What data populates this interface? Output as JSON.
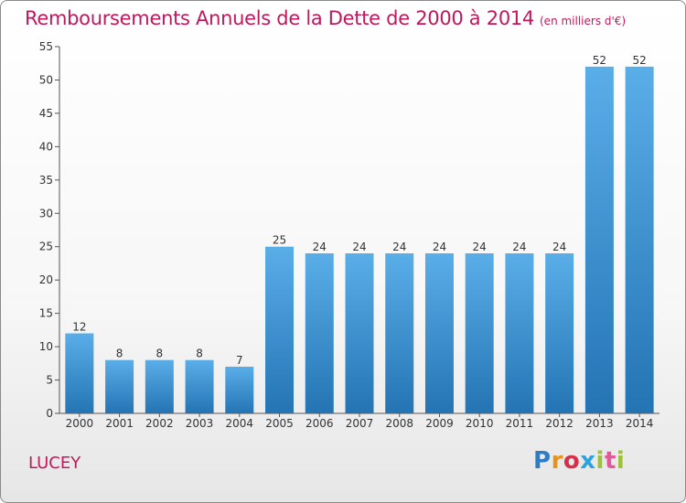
{
  "chart_data": {
    "type": "bar",
    "title": "Remboursements Annuels de la Dette de 2000 à 2014",
    "subtitle": "(en milliers d'€)",
    "xlabel": "",
    "ylabel": "",
    "categories": [
      "2000",
      "2001",
      "2002",
      "2003",
      "2004",
      "2005",
      "2006",
      "2007",
      "2008",
      "2009",
      "2010",
      "2011",
      "2012",
      "2013",
      "2014"
    ],
    "values": [
      12,
      8,
      8,
      8,
      7,
      25,
      24,
      24,
      24,
      24,
      24,
      24,
      24,
      52,
      52
    ],
    "ylim": [
      0,
      55
    ],
    "yticks": [
      0,
      5,
      10,
      15,
      20,
      25,
      30,
      35,
      40,
      45,
      50,
      55
    ],
    "grid": false,
    "bar_color": "#3d92d6",
    "text_color": "#c1185b"
  },
  "location": "LUCEY",
  "brand": {
    "letters": [
      "P",
      "r",
      "o",
      "x",
      "i",
      "t",
      "i"
    ],
    "colors": [
      "#2e7dc4",
      "#e8931c",
      "#d62f4a",
      "#2aa3df",
      "#9cc23a",
      "#e05a9a"
    ]
  }
}
